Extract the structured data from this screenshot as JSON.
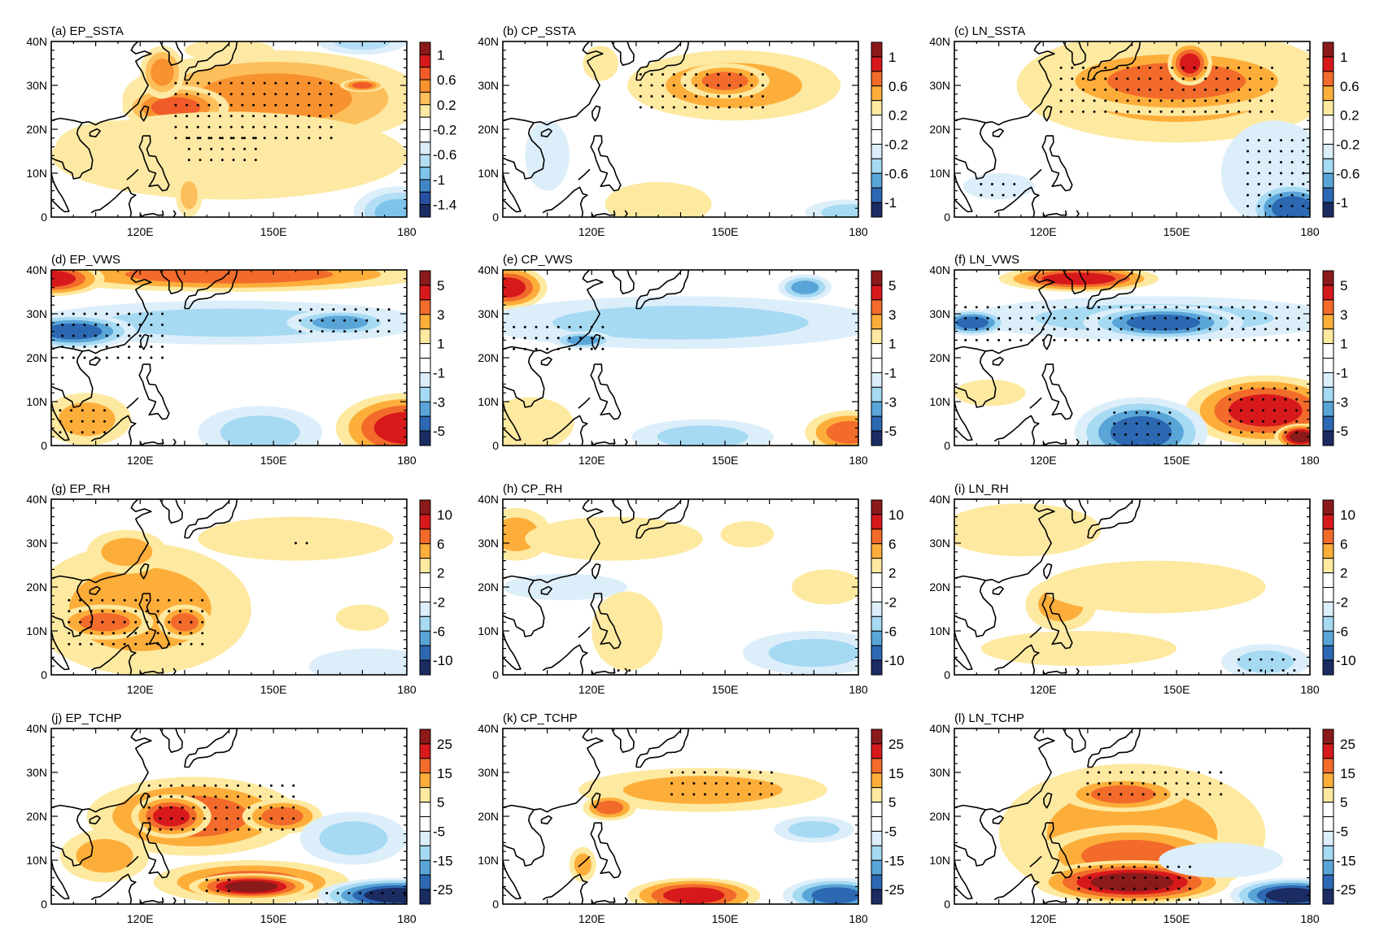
{
  "chart_data": {
    "type": "heatmap",
    "description_axes": {
      "x_ticks": [
        "120E",
        "150E",
        "180"
      ],
      "y_ticks": [
        "0",
        "10N",
        "20N",
        "30N",
        "40N"
      ],
      "lon_range": [
        100,
        180
      ],
      "lat_range": [
        0,
        40
      ]
    },
    "colorbars": {
      "ssta_a": {
        "labels": [
          "1",
          "0.6",
          "0.2",
          "-0.2",
          "-0.6",
          "-1",
          "-1.4"
        ],
        "nboxes": 14,
        "colors": [
          "#8b1a1a",
          "#d7191c",
          "#f15a29",
          "#f8922e",
          "#fdbf5b",
          "#fde9a3",
          "#ffffff",
          "#ffffff",
          "#dceefa",
          "#b3def5",
          "#7ec4ea",
          "#3f87c8",
          "#2650a0",
          "#1b2c63"
        ]
      },
      "ssta": {
        "labels": [
          "1",
          "0.6",
          "0.2",
          "-0.2",
          "-0.6",
          "-1"
        ],
        "nboxes": 12,
        "colors": [
          "#8b1a1a",
          "#d7191c",
          "#f26b2b",
          "#fdae3a",
          "#fde9a0",
          "#ffffff",
          "#ffffff",
          "#dceefa",
          "#a6daf3",
          "#5aa5d8",
          "#2d68b3",
          "#1b2c63"
        ]
      },
      "vws": {
        "labels": [
          "5",
          "3",
          "1",
          "-1",
          "-3",
          "-5"
        ],
        "nboxes": 12,
        "colors": [
          "#8b1a1a",
          "#d7191c",
          "#f26b2b",
          "#fdae3a",
          "#fde9a0",
          "#ffffff",
          "#ffffff",
          "#dceefa",
          "#a6daf3",
          "#5aa5d8",
          "#2d68b3",
          "#1b2c63"
        ]
      },
      "rh": {
        "labels": [
          "10",
          "6",
          "2",
          "-2",
          "-6",
          "-10"
        ],
        "nboxes": 12,
        "colors": [
          "#8b1a1a",
          "#d7191c",
          "#f26b2b",
          "#fdae3a",
          "#fde9a0",
          "#ffffff",
          "#ffffff",
          "#dceefa",
          "#a6daf3",
          "#5aa5d8",
          "#2d68b3",
          "#1b2c63"
        ]
      },
      "tchp": {
        "labels": [
          "25",
          "15",
          "5",
          "-5",
          "-15",
          "-25"
        ],
        "nboxes": 12,
        "colors": [
          "#8b1a1a",
          "#d7191c",
          "#f26b2b",
          "#fdae3a",
          "#fde9a0",
          "#ffffff",
          "#ffffff",
          "#dceefa",
          "#a6daf3",
          "#5aa5d8",
          "#2d68b3",
          "#1b2c63"
        ]
      }
    },
    "panels": [
      {
        "title": "(a) EP_SSTA",
        "colorbar": "ssta_a",
        "blobs": [
          {
            "lon": 150,
            "lat": 27,
            "rx": 34,
            "ry": 11,
            "level": 3
          },
          {
            "lon": 128,
            "lat": 25,
            "rx": 12,
            "ry": 5,
            "level": 4
          },
          {
            "lon": 170,
            "lat": 30,
            "rx": 5,
            "ry": 1.5,
            "level": 4
          },
          {
            "lon": 125,
            "lat": 33,
            "rx": 5,
            "ry": 6,
            "level": 3
          },
          {
            "lon": 140,
            "lat": 14,
            "rx": 40,
            "ry": 10,
            "level": 1
          },
          {
            "lon": 115,
            "lat": 16,
            "rx": 14,
            "ry": 6,
            "level": 1
          },
          {
            "lon": 131,
            "lat": 5,
            "rx": 3,
            "ry": 5,
            "level": 2
          },
          {
            "lon": 140,
            "lat": 38,
            "rx": 10,
            "ry": 2.5,
            "level": 1
          },
          {
            "lon": 170,
            "lat": 40,
            "rx": 10,
            "ry": 3,
            "level": -2
          },
          {
            "lon": 178,
            "lat": 1,
            "rx": 10,
            "ry": 6,
            "level": -3
          }
        ],
        "stipple": [
          [
            128,
            165,
            18,
            31
          ],
          [
            131,
            148,
            13,
            18
          ]
        ]
      },
      {
        "title": "(b) CP_SSTA",
        "colorbar": "ssta",
        "blobs": [
          {
            "lon": 152,
            "lat": 30,
            "rx": 24,
            "ry": 8,
            "level": 2
          },
          {
            "lon": 150,
            "lat": 31,
            "rx": 10,
            "ry": 4,
            "level": 3
          },
          {
            "lon": 122,
            "lat": 35,
            "rx": 4,
            "ry": 4,
            "level": 1
          },
          {
            "lon": 110,
            "lat": 14,
            "rx": 5,
            "ry": 8,
            "level": -1
          },
          {
            "lon": 135,
            "lat": 3,
            "rx": 12,
            "ry": 5,
            "level": 1
          },
          {
            "lon": 178,
            "lat": 1,
            "rx": 10,
            "ry": 3,
            "level": -2
          }
        ],
        "stipple": [
          [
            131,
            160,
            25,
            34
          ]
        ]
      },
      {
        "title": "(c) LN_SSTA",
        "colorbar": "ssta",
        "blobs": [
          {
            "lon": 150,
            "lat": 30,
            "rx": 36,
            "ry": 13,
            "level": 2
          },
          {
            "lon": 150,
            "lat": 31,
            "rx": 30,
            "ry": 8,
            "level": 3
          },
          {
            "lon": 153,
            "lat": 35,
            "rx": 5,
            "ry": 5,
            "level": 4
          },
          {
            "lon": 172,
            "lat": 10,
            "rx": 12,
            "ry": 12,
            "level": -1
          },
          {
            "lon": 176,
            "lat": 2,
            "rx": 10,
            "ry": 6,
            "level": -4
          },
          {
            "lon": 110,
            "lat": 7,
            "rx": 8,
            "ry": 3,
            "level": -1
          }
        ],
        "stipple": [
          [
            124,
            173,
            24,
            36
          ],
          [
            166,
            180,
            0,
            18
          ],
          [
            106,
            114,
            5,
            9
          ]
        ]
      },
      {
        "title": "(d) EP_VWS",
        "colorbar": "vws",
        "blobs": [
          {
            "lon": 140,
            "lat": 39,
            "rx": 45,
            "ry": 4,
            "level": 3
          },
          {
            "lon": 100,
            "lat": 38,
            "rx": 12,
            "ry": 4,
            "level": 4
          },
          {
            "lon": 140,
            "lat": 28,
            "rx": 45,
            "ry": 5,
            "level": -2
          },
          {
            "lon": 105,
            "lat": 26,
            "rx": 14,
            "ry": 4,
            "level": -4
          },
          {
            "lon": 165,
            "lat": 28,
            "rx": 12,
            "ry": 3,
            "level": -3
          },
          {
            "lon": 108,
            "lat": 6,
            "rx": 10,
            "ry": 6,
            "level": 2
          },
          {
            "lon": 180,
            "lat": 4,
            "rx": 16,
            "ry": 8,
            "level": 4
          },
          {
            "lon": 147,
            "lat": 3,
            "rx": 14,
            "ry": 6,
            "level": -2
          }
        ],
        "stipple": [
          [
            100,
            125,
            20,
            30
          ],
          [
            156,
            176,
            26,
            31
          ],
          [
            102,
            112,
            3,
            9
          ]
        ]
      },
      {
        "title": "(e) CP_VWS",
        "colorbar": "vws",
        "blobs": [
          {
            "lon": 101,
            "lat": 36,
            "rx": 9,
            "ry": 5,
            "level": 4
          },
          {
            "lon": 140,
            "lat": 28,
            "rx": 45,
            "ry": 6,
            "level": -2
          },
          {
            "lon": 168,
            "lat": 36,
            "rx": 6,
            "ry": 3,
            "level": -3
          },
          {
            "lon": 118,
            "lat": 24,
            "rx": 7,
            "ry": 2,
            "level": -3
          },
          {
            "lon": 106,
            "lat": 5,
            "rx": 10,
            "ry": 6,
            "level": 1
          },
          {
            "lon": 145,
            "lat": 2,
            "rx": 16,
            "ry": 4,
            "level": -2
          },
          {
            "lon": 178,
            "lat": 3,
            "rx": 10,
            "ry": 5,
            "level": 3
          }
        ],
        "stipple": [
          [
            100,
            123,
            22,
            27
          ]
        ]
      },
      {
        "title": "(f) LN_VWS",
        "colorbar": "vws",
        "blobs": [
          {
            "lon": 128,
            "lat": 38,
            "rx": 18,
            "ry": 3,
            "level": 4
          },
          {
            "lon": 145,
            "lat": 29,
            "rx": 42,
            "ry": 5,
            "level": -2
          },
          {
            "lon": 147,
            "lat": 28,
            "rx": 18,
            "ry": 4,
            "level": -4
          },
          {
            "lon": 104,
            "lat": 28,
            "rx": 8,
            "ry": 3,
            "level": -4
          },
          {
            "lon": 170,
            "lat": 8,
            "rx": 18,
            "ry": 8,
            "level": 4
          },
          {
            "lon": 178,
            "lat": 2,
            "rx": 6,
            "ry": 3,
            "level": 5
          },
          {
            "lon": 142,
            "lat": 3,
            "rx": 15,
            "ry": 8,
            "level": -4
          },
          {
            "lon": 108,
            "lat": 12,
            "rx": 8,
            "ry": 3,
            "level": 1
          }
        ],
        "stipple": [
          [
            100,
            178,
            24,
            33
          ],
          [
            136,
            150,
            0,
            8
          ],
          [
            162,
            178,
            3,
            13
          ]
        ]
      },
      {
        "title": "(g) EP_RH",
        "colorbar": "rh",
        "blobs": [
          {
            "lon": 120,
            "lat": 15,
            "rx": 25,
            "ry": 15,
            "level": 2
          },
          {
            "lon": 112,
            "lat": 12,
            "rx": 11,
            "ry": 4,
            "level": 3
          },
          {
            "lon": 130,
            "lat": 12,
            "rx": 6,
            "ry": 4,
            "level": 3
          },
          {
            "lon": 117,
            "lat": 28,
            "rx": 9,
            "ry": 5,
            "level": 2
          },
          {
            "lon": 155,
            "lat": 31,
            "rx": 22,
            "ry": 5,
            "level": 1
          },
          {
            "lon": 170,
            "lat": 13,
            "rx": 6,
            "ry": 3,
            "level": 1
          },
          {
            "lon": 172,
            "lat": 2,
            "rx": 14,
            "ry": 4,
            "level": -1
          }
        ],
        "stipple": [
          [
            104,
            136,
            7,
            18
          ],
          [
            155,
            159,
            30,
            32
          ]
        ]
      },
      {
        "title": "(h) CP_RH",
        "colorbar": "rh",
        "blobs": [
          {
            "lon": 103,
            "lat": 32,
            "rx": 8,
            "ry": 6,
            "level": 2
          },
          {
            "lon": 125,
            "lat": 31,
            "rx": 20,
            "ry": 5,
            "level": 1
          },
          {
            "lon": 114,
            "lat": 20,
            "rx": 14,
            "ry": 3,
            "level": -1
          },
          {
            "lon": 128,
            "lat": 10,
            "rx": 8,
            "ry": 9,
            "level": 1
          },
          {
            "lon": 155,
            "lat": 32,
            "rx": 6,
            "ry": 3,
            "level": 1
          },
          {
            "lon": 173,
            "lat": 20,
            "rx": 8,
            "ry": 4,
            "level": 1
          },
          {
            "lon": 170,
            "lat": 5,
            "rx": 16,
            "ry": 5,
            "level": -2
          }
        ],
        "stipple": [
          [
            126,
            130,
            1,
            2
          ],
          [
            160,
            170,
            0,
            1
          ]
        ]
      },
      {
        "title": "(i) LN_RH",
        "colorbar": "rh",
        "blobs": [
          {
            "lon": 115,
            "lat": 33,
            "rx": 18,
            "ry": 6,
            "level": 1
          },
          {
            "lon": 124,
            "lat": 16,
            "rx": 8,
            "ry": 6,
            "level": 2
          },
          {
            "lon": 145,
            "lat": 20,
            "rx": 25,
            "ry": 6,
            "level": 1
          },
          {
            "lon": 128,
            "lat": 6,
            "rx": 22,
            "ry": 4,
            "level": 1
          },
          {
            "lon": 170,
            "lat": 3,
            "rx": 10,
            "ry": 4,
            "level": -2
          }
        ],
        "stipple": [
          [
            164,
            178,
            1,
            4
          ]
        ]
      },
      {
        "title": "(j) EP_TCHP",
        "colorbar": "tchp",
        "blobs": [
          {
            "lon": 132,
            "lat": 20,
            "rx": 24,
            "ry": 9,
            "level": 3
          },
          {
            "lon": 127,
            "lat": 20,
            "rx": 9,
            "ry": 5,
            "level": 4
          },
          {
            "lon": 152,
            "lat": 20,
            "rx": 9,
            "ry": 4,
            "level": 3
          },
          {
            "lon": 145,
            "lat": 5,
            "rx": 22,
            "ry": 5,
            "level": 3
          },
          {
            "lon": 145,
            "lat": 4,
            "rx": 14,
            "ry": 3,
            "level": 5
          },
          {
            "lon": 112,
            "lat": 11,
            "rx": 10,
            "ry": 6,
            "level": 2
          },
          {
            "lon": 168,
            "lat": 15,
            "rx": 12,
            "ry": 6,
            "level": -2
          },
          {
            "lon": 178,
            "lat": 2,
            "rx": 18,
            "ry": 4,
            "level": -5
          }
        ],
        "stipple": [
          [
            122,
            155,
            17,
            27
          ],
          [
            135,
            142,
            3,
            6
          ],
          [
            162,
            180,
            0,
            3
          ]
        ]
      },
      {
        "title": "(k) CP_TCHP",
        "colorbar": "tchp",
        "blobs": [
          {
            "lon": 145,
            "lat": 26,
            "rx": 28,
            "ry": 5,
            "level": 2
          },
          {
            "lon": 124,
            "lat": 22,
            "rx": 6,
            "ry": 3,
            "level": 3
          },
          {
            "lon": 143,
            "lat": 2,
            "rx": 15,
            "ry": 4,
            "level": 4
          },
          {
            "lon": 118,
            "lat": 9,
            "rx": 3,
            "ry": 4,
            "level": 2
          },
          {
            "lon": 175,
            "lat": 2,
            "rx": 12,
            "ry": 4,
            "level": -4
          },
          {
            "lon": 170,
            "lat": 17,
            "rx": 9,
            "ry": 3,
            "level": -2
          }
        ],
        "stipple": [
          [
            138,
            162,
            25,
            30
          ]
        ]
      },
      {
        "title": "(l) LN_TCHP",
        "colorbar": "tchp",
        "blobs": [
          {
            "lon": 140,
            "lat": 16,
            "rx": 30,
            "ry": 16,
            "level": 2
          },
          {
            "lon": 140,
            "lat": 11,
            "rx": 22,
            "ry": 7,
            "level": 3
          },
          {
            "lon": 140,
            "lat": 5,
            "rx": 22,
            "ry": 5,
            "level": 5
          },
          {
            "lon": 138,
            "lat": 25,
            "rx": 14,
            "ry": 4,
            "level": 3
          },
          {
            "lon": 160,
            "lat": 10,
            "rx": 14,
            "ry": 4,
            "level": -1
          },
          {
            "lon": 176,
            "lat": 2,
            "rx": 14,
            "ry": 4,
            "level": -5
          }
        ],
        "stipple": [
          [
            128,
            155,
            1,
            9
          ],
          [
            130,
            160,
            25,
            31
          ]
        ]
      }
    ]
  },
  "coast_label": "coastline"
}
